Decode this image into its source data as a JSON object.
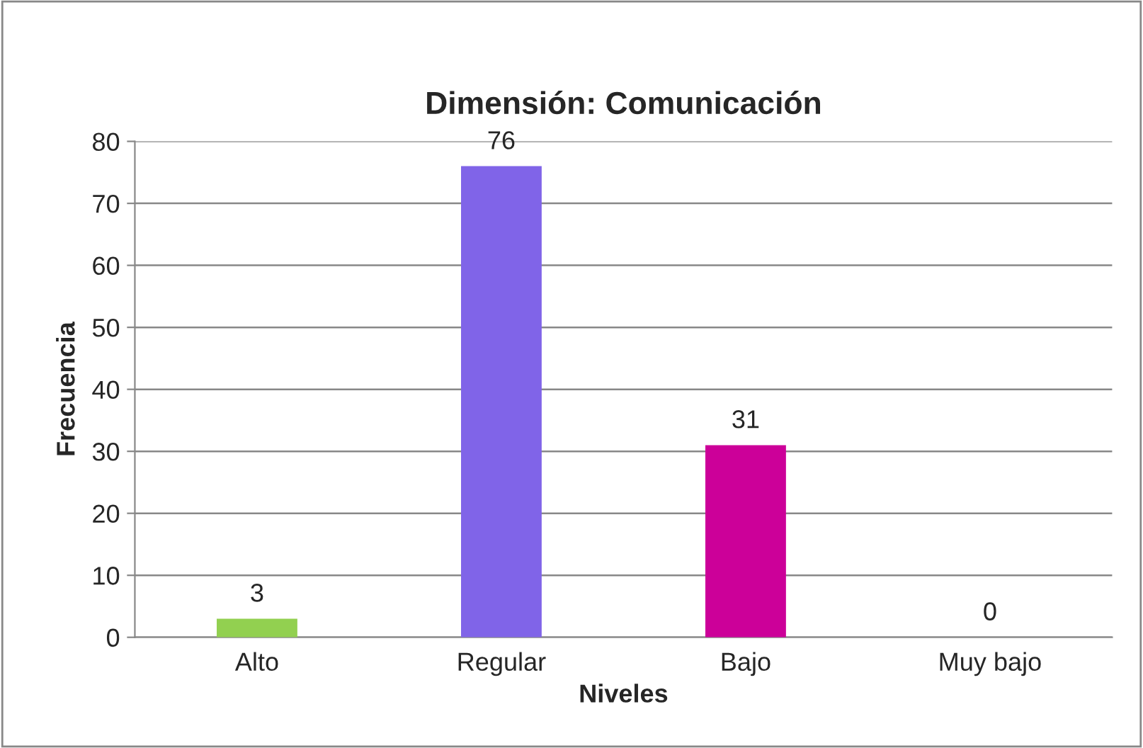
{
  "chart_data": {
    "type": "bar",
    "title": "Dimensión: Comunicación",
    "xlabel": "Niveles",
    "ylabel": "Frecuencia",
    "categories": [
      "Alto",
      "Regular",
      "Bajo",
      "Muy bajo"
    ],
    "values": [
      3,
      76,
      31,
      0
    ],
    "colors": [
      "#92d050",
      "#8064e8",
      "#cc0099",
      null
    ],
    "ylim": [
      0,
      80
    ],
    "yticks": [
      0,
      10,
      20,
      30,
      40,
      50,
      60,
      70,
      80
    ],
    "grid": "y",
    "data_labels": true
  }
}
